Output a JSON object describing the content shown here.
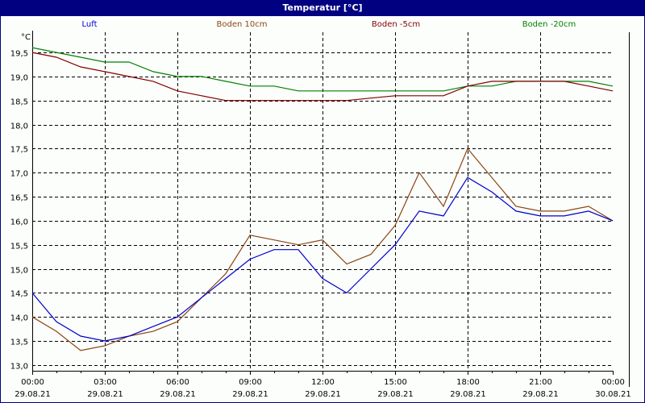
{
  "window": {
    "title": "Temperatur [°C]"
  },
  "legend": [
    {
      "label": "Luft",
      "color": "#0000cc"
    },
    {
      "label": "Boden 10cm",
      "color": "#8b4513"
    },
    {
      "label": "Boden -5cm",
      "color": "#800000"
    },
    {
      "label": "Boden -20cm",
      "color": "#008000"
    }
  ],
  "axes": {
    "y_unit": "°C",
    "y_ticks": [
      "13,0",
      "13,5",
      "14,0",
      "14,5",
      "15,0",
      "15,5",
      "16,0",
      "16,5",
      "17,0",
      "17,5",
      "18,0",
      "18,5",
      "19,0",
      "19,5"
    ],
    "x_ticks": [
      {
        "time": "00:00",
        "date": "29.08.21"
      },
      {
        "time": "03:00",
        "date": "29.08.21"
      },
      {
        "time": "06:00",
        "date": "29.08.21"
      },
      {
        "time": "09:00",
        "date": "29.08.21"
      },
      {
        "time": "12:00",
        "date": "29.08.21"
      },
      {
        "time": "15:00",
        "date": "29.08.21"
      },
      {
        "time": "18:00",
        "date": "29.08.21"
      },
      {
        "time": "21:00",
        "date": "29.08.21"
      },
      {
        "time": "00:00",
        "date": "30.08.21"
      }
    ]
  },
  "chart_data": {
    "type": "line",
    "title": "Temperatur [°C]",
    "xlabel": "",
    "ylabel": "°C",
    "ylim": [
      12.88,
      19.92
    ],
    "x": [
      "00:00",
      "01:00",
      "02:00",
      "03:00",
      "04:00",
      "05:00",
      "06:00",
      "07:00",
      "08:00",
      "09:00",
      "10:00",
      "11:00",
      "12:00",
      "13:00",
      "14:00",
      "15:00",
      "16:00",
      "17:00",
      "18:00",
      "19:00",
      "20:00",
      "21:00",
      "22:00",
      "23:00",
      "24:00"
    ],
    "grid": true,
    "legend_position": "top",
    "series": [
      {
        "name": "Luft",
        "color": "#0000cc",
        "values": [
          14.5,
          13.9,
          13.6,
          13.5,
          13.6,
          13.8,
          14.0,
          14.4,
          14.8,
          15.2,
          15.4,
          15.4,
          14.8,
          14.5,
          15.0,
          15.5,
          16.2,
          16.1,
          16.9,
          16.6,
          16.2,
          16.1,
          16.1,
          16.2,
          16.0
        ]
      },
      {
        "name": "Boden 10cm",
        "color": "#8b4513",
        "values": [
          14.0,
          13.7,
          13.3,
          13.4,
          13.6,
          13.7,
          13.9,
          14.4,
          14.9,
          15.7,
          15.6,
          15.5,
          15.6,
          15.1,
          15.3,
          15.9,
          17.0,
          16.3,
          17.5,
          16.9,
          16.3,
          16.2,
          16.2,
          16.3,
          16.0
        ]
      },
      {
        "name": "Boden -5cm",
        "color": "#800000",
        "values": [
          19.5,
          19.4,
          19.2,
          19.1,
          19.0,
          18.9,
          18.7,
          18.6,
          18.5,
          18.5,
          18.5,
          18.5,
          18.5,
          18.5,
          18.55,
          18.6,
          18.6,
          18.6,
          18.8,
          18.9,
          18.9,
          18.9,
          18.9,
          18.8,
          18.7
        ]
      },
      {
        "name": "Boden -20cm",
        "color": "#008000",
        "values": [
          19.6,
          19.5,
          19.4,
          19.3,
          19.3,
          19.1,
          19.0,
          19.0,
          18.9,
          18.8,
          18.8,
          18.7,
          18.7,
          18.7,
          18.7,
          18.7,
          18.7,
          18.7,
          18.8,
          18.8,
          18.9,
          18.9,
          18.9,
          18.9,
          18.8
        ]
      }
    ]
  }
}
